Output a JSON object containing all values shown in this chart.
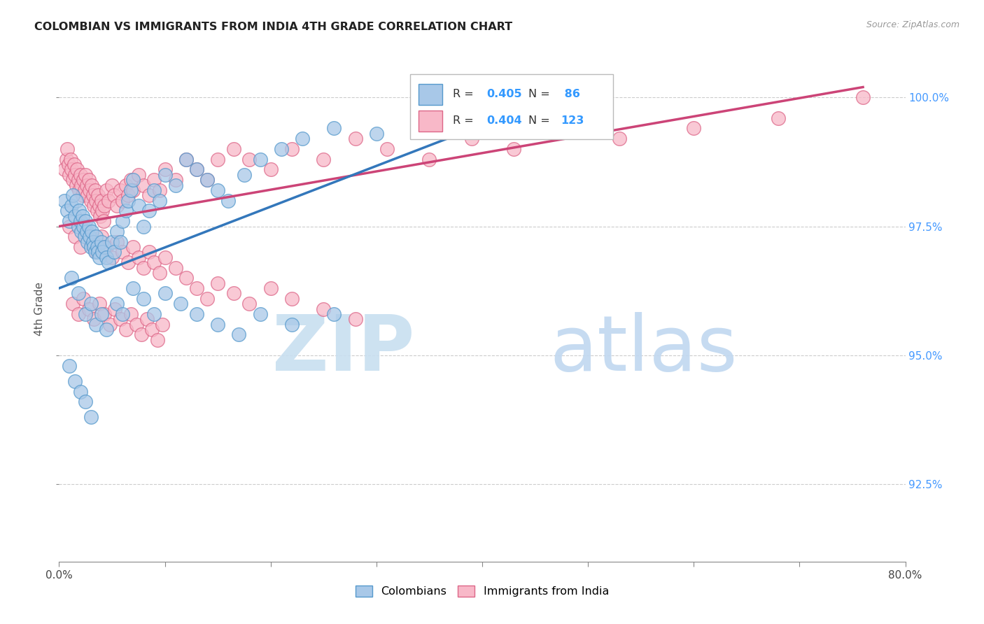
{
  "title": "COLOMBIAN VS IMMIGRANTS FROM INDIA 4TH GRADE CORRELATION CHART",
  "source": "Source: ZipAtlas.com",
  "ylabel": "4th Grade",
  "xlim": [
    0.0,
    0.8
  ],
  "ylim": [
    0.91,
    1.008
  ],
  "xticks": [
    0.0,
    0.1,
    0.2,
    0.3,
    0.4,
    0.5,
    0.6,
    0.7,
    0.8
  ],
  "xticklabels": [
    "0.0%",
    "",
    "",
    "",
    "",
    "",
    "",
    "",
    "80.0%"
  ],
  "ytick_positions": [
    0.925,
    0.95,
    0.975,
    1.0
  ],
  "ytick_labels": [
    "92.5%",
    "95.0%",
    "97.5%",
    "100.0%"
  ],
  "blue_color": "#a8c8e8",
  "pink_color": "#f8b8c8",
  "blue_edge_color": "#5599cc",
  "pink_edge_color": "#dd6688",
  "blue_line_color": "#3377bb",
  "pink_line_color": "#cc4477",
  "blue_scatter_x": [
    0.005,
    0.008,
    0.01,
    0.012,
    0.013,
    0.015,
    0.016,
    0.018,
    0.019,
    0.02,
    0.021,
    0.022,
    0.023,
    0.024,
    0.025,
    0.026,
    0.027,
    0.028,
    0.029,
    0.03,
    0.031,
    0.032,
    0.033,
    0.034,
    0.035,
    0.036,
    0.037,
    0.038,
    0.04,
    0.041,
    0.043,
    0.045,
    0.047,
    0.05,
    0.052,
    0.055,
    0.058,
    0.06,
    0.063,
    0.065,
    0.068,
    0.07,
    0.075,
    0.08,
    0.085,
    0.09,
    0.095,
    0.1,
    0.11,
    0.12,
    0.13,
    0.14,
    0.15,
    0.16,
    0.175,
    0.19,
    0.21,
    0.23,
    0.26,
    0.3,
    0.35,
    0.43,
    0.012,
    0.018,
    0.025,
    0.03,
    0.035,
    0.04,
    0.045,
    0.055,
    0.06,
    0.07,
    0.08,
    0.09,
    0.1,
    0.115,
    0.13,
    0.15,
    0.17,
    0.19,
    0.22,
    0.26,
    0.01,
    0.015,
    0.02,
    0.025,
    0.03
  ],
  "blue_scatter_y": [
    0.98,
    0.978,
    0.976,
    0.979,
    0.981,
    0.977,
    0.98,
    0.975,
    0.978,
    0.976,
    0.974,
    0.977,
    0.975,
    0.973,
    0.976,
    0.974,
    0.972,
    0.975,
    0.973,
    0.971,
    0.974,
    0.972,
    0.971,
    0.97,
    0.973,
    0.971,
    0.97,
    0.969,
    0.972,
    0.97,
    0.971,
    0.969,
    0.968,
    0.972,
    0.97,
    0.974,
    0.972,
    0.976,
    0.978,
    0.98,
    0.982,
    0.984,
    0.979,
    0.975,
    0.978,
    0.982,
    0.98,
    0.985,
    0.983,
    0.988,
    0.986,
    0.984,
    0.982,
    0.98,
    0.985,
    0.988,
    0.99,
    0.992,
    0.994,
    0.993,
    0.996,
    0.994,
    0.965,
    0.962,
    0.958,
    0.96,
    0.956,
    0.958,
    0.955,
    0.96,
    0.958,
    0.963,
    0.961,
    0.958,
    0.962,
    0.96,
    0.958,
    0.956,
    0.954,
    0.958,
    0.956,
    0.958,
    0.948,
    0.945,
    0.943,
    0.941,
    0.938
  ],
  "pink_scatter_x": [
    0.005,
    0.007,
    0.008,
    0.009,
    0.01,
    0.011,
    0.012,
    0.013,
    0.014,
    0.015,
    0.016,
    0.017,
    0.018,
    0.019,
    0.02,
    0.021,
    0.022,
    0.023,
    0.024,
    0.025,
    0.026,
    0.027,
    0.028,
    0.029,
    0.03,
    0.031,
    0.032,
    0.033,
    0.034,
    0.035,
    0.036,
    0.037,
    0.038,
    0.039,
    0.04,
    0.041,
    0.042,
    0.043,
    0.045,
    0.047,
    0.05,
    0.052,
    0.055,
    0.058,
    0.06,
    0.063,
    0.065,
    0.068,
    0.07,
    0.075,
    0.08,
    0.085,
    0.09,
    0.095,
    0.1,
    0.11,
    0.12,
    0.13,
    0.14,
    0.15,
    0.165,
    0.18,
    0.2,
    0.22,
    0.25,
    0.28,
    0.31,
    0.35,
    0.39,
    0.43,
    0.48,
    0.53,
    0.6,
    0.68,
    0.76,
    0.01,
    0.015,
    0.02,
    0.025,
    0.03,
    0.035,
    0.04,
    0.045,
    0.05,
    0.055,
    0.06,
    0.065,
    0.07,
    0.075,
    0.08,
    0.085,
    0.09,
    0.095,
    0.1,
    0.11,
    0.12,
    0.13,
    0.14,
    0.15,
    0.165,
    0.18,
    0.2,
    0.22,
    0.25,
    0.28,
    0.013,
    0.018,
    0.023,
    0.028,
    0.033,
    0.038,
    0.043,
    0.048,
    0.053,
    0.058,
    0.063,
    0.068,
    0.073,
    0.078,
    0.083,
    0.088,
    0.093,
    0.098
  ],
  "pink_scatter_y": [
    0.986,
    0.988,
    0.99,
    0.987,
    0.985,
    0.988,
    0.986,
    0.984,
    0.987,
    0.985,
    0.983,
    0.986,
    0.984,
    0.982,
    0.985,
    0.983,
    0.981,
    0.984,
    0.982,
    0.985,
    0.983,
    0.981,
    0.984,
    0.982,
    0.98,
    0.983,
    0.981,
    0.979,
    0.982,
    0.98,
    0.978,
    0.981,
    0.979,
    0.977,
    0.98,
    0.978,
    0.976,
    0.979,
    0.982,
    0.98,
    0.983,
    0.981,
    0.979,
    0.982,
    0.98,
    0.983,
    0.981,
    0.984,
    0.982,
    0.985,
    0.983,
    0.981,
    0.984,
    0.982,
    0.986,
    0.984,
    0.988,
    0.986,
    0.984,
    0.988,
    0.99,
    0.988,
    0.986,
    0.99,
    0.988,
    0.992,
    0.99,
    0.988,
    0.992,
    0.99,
    0.994,
    0.992,
    0.994,
    0.996,
    1.0,
    0.975,
    0.973,
    0.971,
    0.974,
    0.972,
    0.97,
    0.973,
    0.971,
    0.969,
    0.972,
    0.97,
    0.968,
    0.971,
    0.969,
    0.967,
    0.97,
    0.968,
    0.966,
    0.969,
    0.967,
    0.965,
    0.963,
    0.961,
    0.964,
    0.962,
    0.96,
    0.963,
    0.961,
    0.959,
    0.957,
    0.96,
    0.958,
    0.961,
    0.959,
    0.957,
    0.96,
    0.958,
    0.956,
    0.959,
    0.957,
    0.955,
    0.958,
    0.956,
    0.954,
    0.957,
    0.955,
    0.953,
    0.956
  ],
  "blue_trendline_x": [
    0.0,
    0.43
  ],
  "blue_trendline_y": [
    0.963,
    0.997
  ],
  "pink_trendline_x": [
    0.0,
    0.76
  ],
  "pink_trendline_y": [
    0.975,
    1.002
  ],
  "watermark_zip_color": "#c8dff0",
  "watermark_atlas_color": "#c0d8f0"
}
